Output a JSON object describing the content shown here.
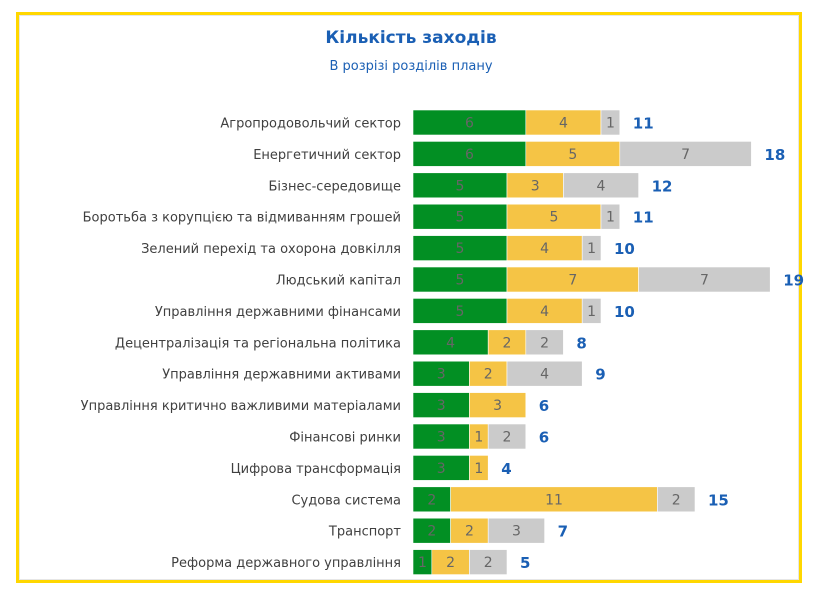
{
  "chart_data": {
    "type": "bar",
    "orientation": "horizontal",
    "stacked": true,
    "title": "Кількість заходів",
    "subtitle": "В розрізі розділів плану",
    "categories": [
      "Агропродовольчий сектор",
      "Енергетичний сектор",
      "Бізнес-середовище",
      "Боротьба з корупцією та відмиванням грошей",
      "Зелений перехід та охорона довкілля",
      "Людський капітал",
      "Управління державними фінансами",
      "Децентралізація та регіональна політика",
      "Управління державними активами",
      "Управління критично важливими матеріалами",
      "Фінансові ринки",
      "Цифрова трансформація",
      "Судова система",
      "Транспорт",
      "Реформа державного управління"
    ],
    "series": [
      {
        "name": "series-green",
        "color": "#028f23",
        "values": [
          6,
          6,
          5,
          5,
          5,
          5,
          5,
          4,
          3,
          3,
          3,
          3,
          2,
          2,
          1
        ]
      },
      {
        "name": "series-yellow",
        "color": "#f5c445",
        "values": [
          4,
          5,
          3,
          5,
          4,
          7,
          4,
          2,
          2,
          3,
          1,
          1,
          11,
          2,
          2
        ]
      },
      {
        "name": "series-gray",
        "color": "#cbcbcb",
        "values": [
          1,
          7,
          4,
          1,
          1,
          7,
          1,
          2,
          4,
          0,
          2,
          0,
          2,
          3,
          2
        ]
      }
    ],
    "totals": [
      11,
      18,
      12,
      11,
      10,
      19,
      10,
      8,
      9,
      6,
      6,
      4,
      15,
      7,
      5
    ],
    "legend": "none",
    "grid": false
  }
}
